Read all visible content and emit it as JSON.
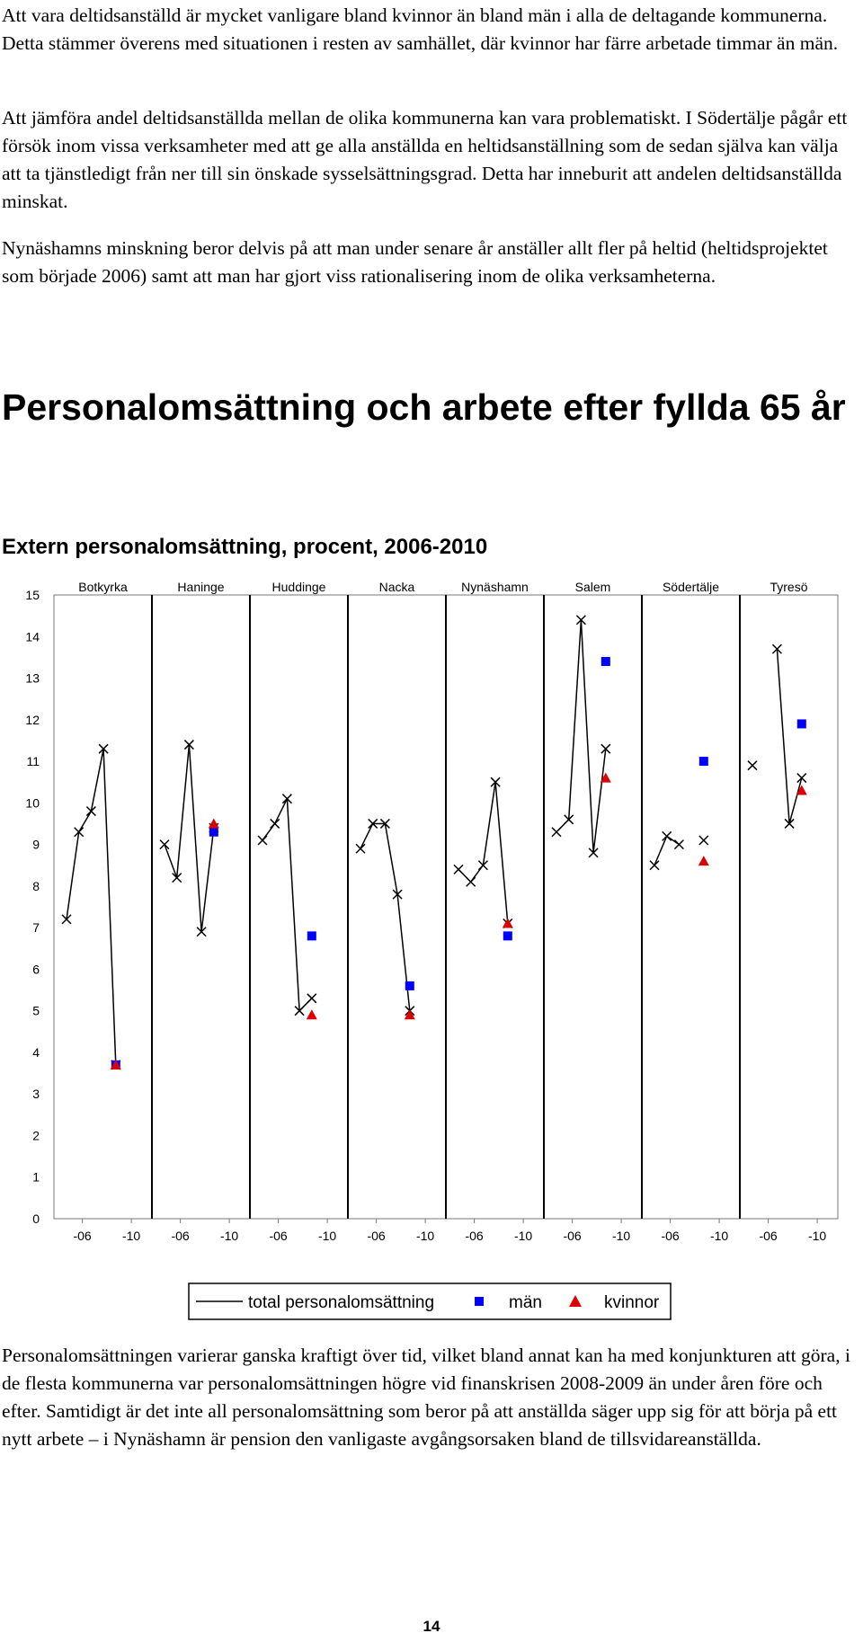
{
  "paragraphs": [
    "Att vara deltidsanställd är mycket vanligare bland kvinnor än bland män i alla de deltagande kommunerna. Detta stämmer överens med situationen i resten av samhället, där kvinnor har färre arbetade timmar än män.",
    "Att jämföra andel deltidsanställda mellan de olika kommunerna kan vara problematiskt. I Södertälje pågår ett försök inom vissa verksamheter med att ge alla anställda en heltidsanställning som de sedan själva kan välja att ta tjänstledigt från ner till sin önskade sysselsättningsgrad. Detta har inneburit att andelen deltidsanställda minskat.",
    "Nynäshamns minskning beror delvis på att man under senare år anställer allt fler på heltid (heltidsprojektet som började 2006) samt att man har gjort viss rationalisering inom de olika verksamheterna.",
    "Personalomsättningen varierar ganska kraftigt över tid, vilket bland annat kan ha med konjunkturen att göra, i de flesta kommunerna var personalomsättningen högre vid finanskrisen 2008-2009 än under åren före och efter. Samtidigt är det inte all personalomsättning som beror på att anställda säger upp sig för att börja på ett nytt arbete – i Nynäshamn är pension den vanligaste avgångsorsaken bland de tillsvidareanställda."
  ],
  "heading": "Personalomsättning och arbete efter fyllda 65 år",
  "page_number": "14",
  "chart_data": {
    "type": "line",
    "title": "Extern personalomsättning, procent, 2006-2010",
    "ylim": [
      0,
      15
    ],
    "yticks": [
      "0",
      "1",
      "2",
      "3",
      "4",
      "5",
      "6",
      "7",
      "8",
      "9",
      "10",
      "11",
      "12",
      "13",
      "14",
      "15"
    ],
    "x_tick_labels": [
      "-06",
      "-10"
    ],
    "groups": [
      "Botkyrka",
      "Haninge",
      "Huddinge",
      "Nacka",
      "Nynäshamn",
      "Salem",
      "Södertälje",
      "Tyresö"
    ],
    "legend": [
      "total personalomsättning",
      "män",
      "kvinnor"
    ],
    "colors": {
      "total": "#000000",
      "man": "#0000ff",
      "kvinnor": "#dd0000"
    },
    "series": [
      {
        "name": "total personalomsättning",
        "values": [
          [
            7.2,
            9.3,
            9.8,
            11.3,
            3.7
          ],
          [
            9.0,
            8.2,
            11.4,
            6.9,
            9.4
          ],
          [
            9.1,
            9.5,
            10.1,
            5.0,
            5.3
          ],
          [
            8.9,
            9.5,
            9.5,
            7.8,
            5.0
          ],
          [
            8.4,
            8.1,
            8.5,
            10.5,
            7.1
          ],
          [
            9.3,
            9.6,
            14.4,
            8.8,
            11.3
          ],
          [
            8.5,
            9.2,
            9.0,
            null,
            9.1
          ],
          [
            10.9,
            null,
            13.7,
            9.5,
            10.6
          ]
        ]
      },
      {
        "name": "män",
        "values": [
          3.7,
          9.3,
          6.8,
          5.6,
          6.8,
          13.4,
          11.0,
          11.9
        ]
      },
      {
        "name": "kvinnor",
        "values": [
          3.7,
          9.5,
          4.9,
          4.9,
          7.1,
          10.6,
          8.6,
          10.3
        ]
      }
    ]
  }
}
